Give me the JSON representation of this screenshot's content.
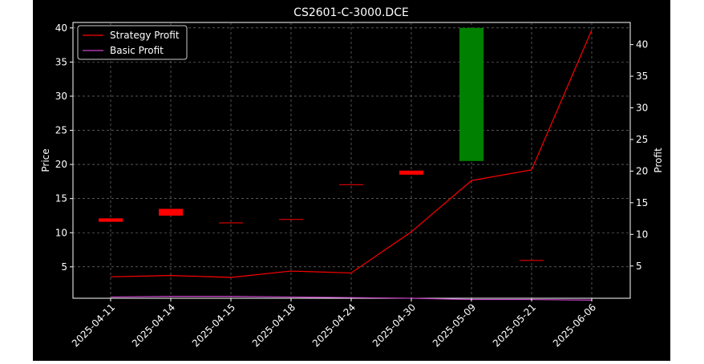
{
  "chart_data": {
    "type": "candlestick+line",
    "title": "CS2601-C-3000.DCE",
    "categories": [
      "2025-04-11",
      "2025-04-14",
      "2025-04-15",
      "2025-04-18",
      "2025-04-24",
      "2025-04-30",
      "2025-05-09",
      "2025-05-21",
      "2025-06-06"
    ],
    "left_axis": {
      "label": "Price",
      "ylim": [
        0.4,
        40.8
      ],
      "ticks": [
        5,
        10,
        15,
        20,
        25,
        30,
        35,
        40
      ]
    },
    "right_axis": {
      "label": "Profit",
      "ylim": [
        -0.1,
        43.5
      ],
      "ticks": [
        5,
        10,
        15,
        20,
        25,
        30,
        35,
        40
      ]
    },
    "candles": [
      {
        "x": "2025-04-11",
        "open": 11.6,
        "close": 12.1,
        "color": "#ff0000"
      },
      {
        "x": "2025-04-14",
        "open": 12.5,
        "close": 13.5,
        "color": "#ff0000"
      },
      {
        "x": "2025-04-15",
        "open": 11.5,
        "close": 11.5,
        "color": "#ff0000"
      },
      {
        "x": "2025-04-18",
        "open": 12.0,
        "close": 12.0,
        "color": "#ff0000"
      },
      {
        "x": "2025-04-24",
        "open": 17.1,
        "close": 17.1,
        "color": "#ff0000"
      },
      {
        "x": "2025-04-30",
        "open": 18.5,
        "close": 19.1,
        "color": "#ff0000"
      },
      {
        "x": "2025-05-09",
        "open": 20.5,
        "close": 40.0,
        "color": "#008000"
      },
      {
        "x": "2025-05-21",
        "open": 6.0,
        "close": 6.0,
        "color": "#ff0000"
      }
    ],
    "series": [
      {
        "name": "Strategy Profit",
        "axis": "right",
        "color": "#ff0000",
        "values": [
          3.3,
          3.5,
          3.2,
          4.2,
          3.9,
          10.4,
          18.5,
          20.2,
          42.3
        ]
      },
      {
        "name": "Basic Profit",
        "axis": "right",
        "color": "#cc44cc",
        "values": [
          0.1,
          0.2,
          0.2,
          0.1,
          0.0,
          -0.1,
          -0.3,
          -0.3,
          -0.4
        ]
      }
    ],
    "grid": true,
    "legend_position": "upper-left",
    "background": "#000000"
  }
}
